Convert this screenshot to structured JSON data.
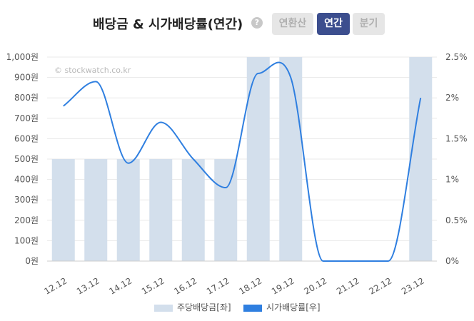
{
  "header": {
    "title": "배당금 & 시가배당률(연간)",
    "help_glyph": "?",
    "tabs": [
      {
        "label": "연환산",
        "active": false
      },
      {
        "label": "연간",
        "active": true
      },
      {
        "label": "분기",
        "active": false
      }
    ]
  },
  "watermark": "© stockwatch.co.kr",
  "colors": {
    "bar": "#d3dfec",
    "line": "#2f7fe0",
    "active_tab": "#3c4e8e"
  },
  "chart_data": {
    "type": "bar+line",
    "categories": [
      "12.12",
      "13.12",
      "14.12",
      "15.12",
      "16.12",
      "17.12",
      "18.12",
      "19.12",
      "20.12",
      "21.12",
      "22.12",
      "23.12"
    ],
    "series": [
      {
        "name": "주당배당금[좌]",
        "type": "bar",
        "axis": "left",
        "values": [
          500,
          500,
          500,
          500,
          500,
          500,
          1000,
          1000,
          0,
          0,
          0,
          1000
        ]
      },
      {
        "name": "시가배당률[우]",
        "type": "line",
        "axis": "right",
        "values": [
          1.9,
          2.2,
          1.2,
          1.7,
          1.25,
          0.9,
          2.3,
          2.25,
          0,
          0,
          0,
          2.0
        ]
      }
    ],
    "y_left": {
      "min": 0,
      "max": 1000,
      "ticks": [
        "0원",
        "100원",
        "200원",
        "300원",
        "400원",
        "500원",
        "600원",
        "700원",
        "800원",
        "900원",
        "1,000원"
      ]
    },
    "y_right": {
      "min": 0,
      "max": 2.5,
      "ticks": [
        "0%",
        "0.5%",
        "1%",
        "1.5%",
        "2%",
        "2.5%"
      ]
    },
    "grid": true,
    "legend_position": "bottom"
  }
}
